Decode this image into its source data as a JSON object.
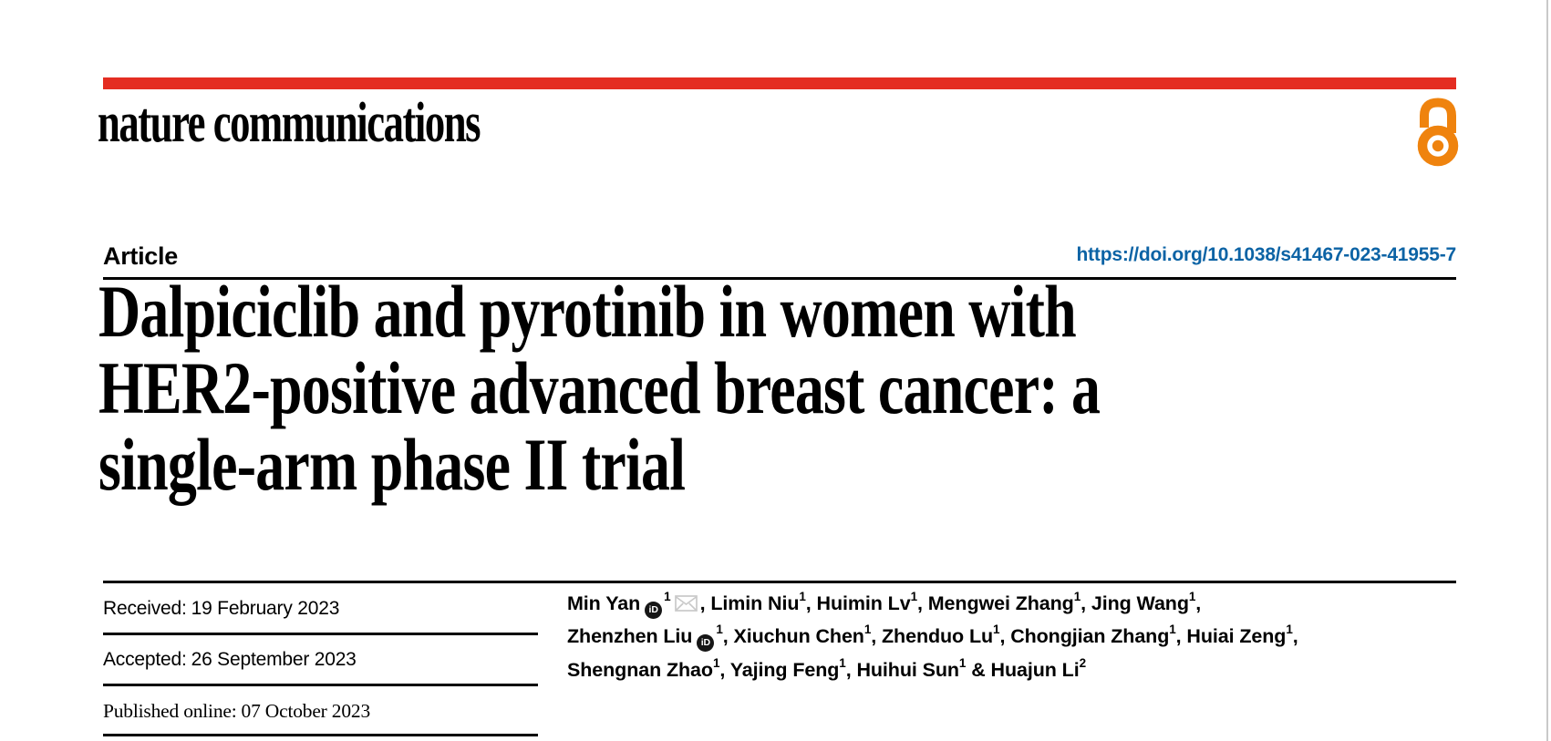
{
  "page": {
    "banner_color": "#e42d22",
    "edge_color": "#c9c9c9"
  },
  "masthead": {
    "journal_name": "nature communications",
    "open_access_icon": "open-access-padlock",
    "open_access_color": "#ef830e"
  },
  "article_header": {
    "type_label": "Article",
    "doi_link": "https://doi.org/10.1038/s41467-023-41955-7",
    "doi_color": "#0c63a5"
  },
  "title": {
    "lines": [
      "Dalpiciclib and pyrotinib in women with",
      "HER2-positive advanced breast cancer: a",
      "single-arm phase II trial"
    ]
  },
  "dates": [
    {
      "label": "Received:",
      "value": "19 February 2023"
    },
    {
      "label": "Accepted:",
      "value": "26 September 2023"
    },
    {
      "label": "Published online:",
      "value": "07 October 2023"
    }
  ],
  "authors": {
    "orcid_icon_text": "iD",
    "lines": [
      [
        {
          "name": "Min Yan",
          "sup": "1",
          "orcid": true,
          "email": true,
          "sep": ", "
        },
        {
          "name": "Limin Niu",
          "sup": "1",
          "sep": ", "
        },
        {
          "name": "Huimin Lv",
          "sup": "1",
          "sep": ", "
        },
        {
          "name": "Mengwei Zhang",
          "sup": "1",
          "sep": ", "
        },
        {
          "name": "Jing Wang",
          "sup": "1",
          "sep": ","
        }
      ],
      [
        {
          "name": "Zhenzhen Liu",
          "sup": "1",
          "orcid": true,
          "sep": ", "
        },
        {
          "name": "Xiuchun Chen",
          "sup": "1",
          "sep": ", "
        },
        {
          "name": "Zhenduo Lu",
          "sup": "1",
          "sep": ", "
        },
        {
          "name": "Chongjian Zhang",
          "sup": "1",
          "sep": ", "
        },
        {
          "name": "Huiai Zeng",
          "sup": "1",
          "sep": ","
        }
      ],
      [
        {
          "name": "Shengnan Zhao",
          "sup": "1",
          "sep": ", "
        },
        {
          "name": "Yajing Feng",
          "sup": "1",
          "sep": ", "
        },
        {
          "name": "Huihui Sun",
          "sup": "1",
          "sep": " & "
        },
        {
          "name": "Huajun Li",
          "sup": "2",
          "sep": ""
        }
      ]
    ]
  }
}
